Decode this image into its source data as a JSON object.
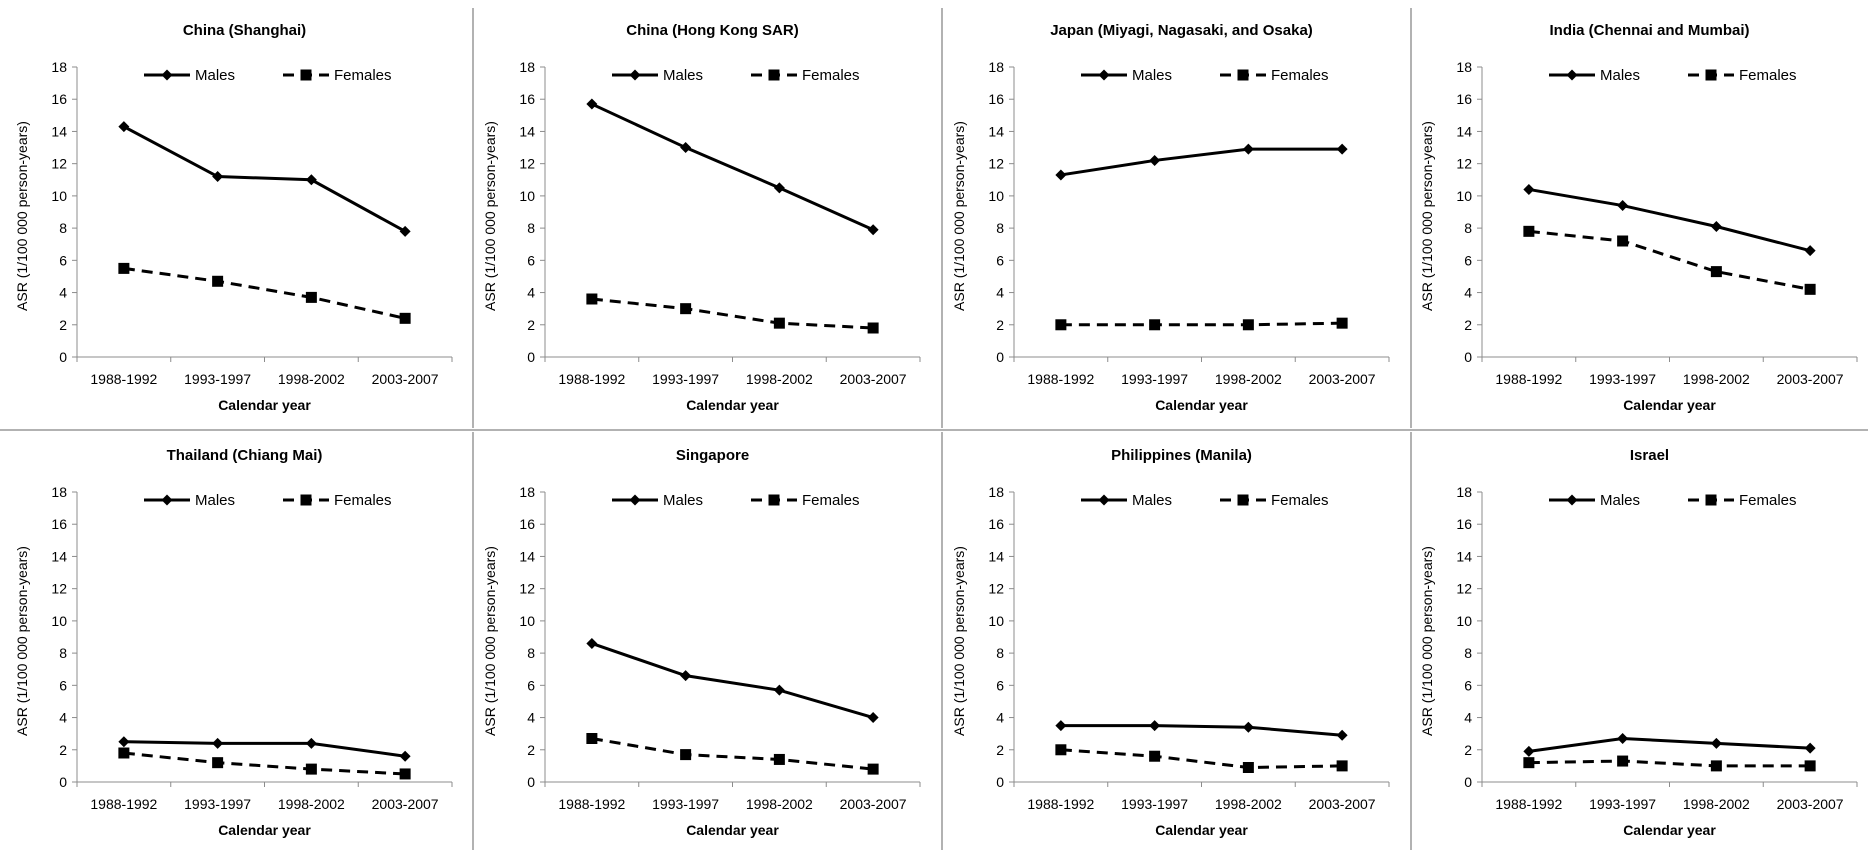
{
  "chart_data": [
    {
      "type": "line",
      "title": "China (Shanghai)",
      "categories": [
        "1988-1992",
        "1993-1997",
        "1998-2002",
        "2003-2007"
      ],
      "xlabel": "Calendar year",
      "ylabel": "ASR (1/100 000 person-years)",
      "ylim": [
        0,
        18
      ],
      "yticks": [
        0,
        2,
        4,
        6,
        8,
        10,
        12,
        14,
        16,
        18
      ],
      "legend_position": "top",
      "series": [
        {
          "name": "Males",
          "values": [
            14.3,
            11.2,
            11.0,
            7.8
          ]
        },
        {
          "name": "Females",
          "values": [
            5.5,
            4.7,
            3.7,
            2.4
          ]
        }
      ]
    },
    {
      "type": "line",
      "title": "China (Hong Kong SAR)",
      "categories": [
        "1988-1992",
        "1993-1997",
        "1998-2002",
        "2003-2007"
      ],
      "xlabel": "Calendar year",
      "ylabel": "ASR (1/100 000 person-years)",
      "ylim": [
        0,
        18
      ],
      "yticks": [
        0,
        2,
        4,
        6,
        8,
        10,
        12,
        14,
        16,
        18
      ],
      "legend_position": "top",
      "series": [
        {
          "name": "Males",
          "values": [
            15.7,
            13.0,
            10.5,
            7.9
          ]
        },
        {
          "name": "Females",
          "values": [
            3.6,
            3.0,
            2.1,
            1.8
          ]
        }
      ]
    },
    {
      "type": "line",
      "title": "Japan (Miyagi, Nagasaki, and Osaka)",
      "categories": [
        "1988-1992",
        "1993-1997",
        "1998-2002",
        "2003-2007"
      ],
      "xlabel": "Calendar year",
      "ylabel": "ASR (1/100 000 person-years)",
      "ylim": [
        0,
        18
      ],
      "yticks": [
        0,
        2,
        4,
        6,
        8,
        10,
        12,
        14,
        16,
        18
      ],
      "legend_position": "top",
      "series": [
        {
          "name": "Males",
          "values": [
            11.3,
            12.2,
            12.9,
            12.9
          ]
        },
        {
          "name": "Females",
          "values": [
            2.0,
            2.0,
            2.0,
            2.1
          ]
        }
      ]
    },
    {
      "type": "line",
      "title": "India (Chennai and Mumbai)",
      "categories": [
        "1988-1992",
        "1993-1997",
        "1998-2002",
        "2003-2007"
      ],
      "xlabel": "Calendar year",
      "ylabel": "ASR (1/100 000 person-years)",
      "ylim": [
        0,
        18
      ],
      "yticks": [
        0,
        2,
        4,
        6,
        8,
        10,
        12,
        14,
        16,
        18
      ],
      "legend_position": "top",
      "series": [
        {
          "name": "Males",
          "values": [
            10.4,
            9.4,
            8.1,
            6.6
          ]
        },
        {
          "name": "Females",
          "values": [
            7.8,
            7.2,
            5.3,
            4.2
          ]
        }
      ]
    },
    {
      "type": "line",
      "title": "Thailand (Chiang Mai)",
      "categories": [
        "1988-1992",
        "1993-1997",
        "1998-2002",
        "2003-2007"
      ],
      "xlabel": "Calendar year",
      "ylabel": "ASR (1/100 000 person-years)",
      "ylim": [
        0,
        18
      ],
      "yticks": [
        0,
        2,
        4,
        6,
        8,
        10,
        12,
        14,
        16,
        18
      ],
      "legend_position": "top",
      "series": [
        {
          "name": "Males",
          "values": [
            2.5,
            2.4,
            2.4,
            1.6
          ]
        },
        {
          "name": "Females",
          "values": [
            1.8,
            1.2,
            0.8,
            0.5
          ]
        }
      ]
    },
    {
      "type": "line",
      "title": "Singapore",
      "categories": [
        "1988-1992",
        "1993-1997",
        "1998-2002",
        "2003-2007"
      ],
      "xlabel": "Calendar year",
      "ylabel": "ASR (1/100 000 person-years)",
      "ylim": [
        0,
        18
      ],
      "yticks": [
        0,
        2,
        4,
        6,
        8,
        10,
        12,
        14,
        16,
        18
      ],
      "legend_position": "top",
      "series": [
        {
          "name": "Males",
          "values": [
            8.6,
            6.6,
            5.7,
            4.0
          ]
        },
        {
          "name": "Females",
          "values": [
            2.7,
            1.7,
            1.4,
            0.8
          ]
        }
      ]
    },
    {
      "type": "line",
      "title": "Philippines (Manila)",
      "categories": [
        "1988-1992",
        "1993-1997",
        "1998-2002",
        "2003-2007"
      ],
      "xlabel": "Calendar year",
      "ylabel": "ASR (1/100 000 person-years)",
      "ylim": [
        0,
        18
      ],
      "yticks": [
        0,
        2,
        4,
        6,
        8,
        10,
        12,
        14,
        16,
        18
      ],
      "legend_position": "top",
      "series": [
        {
          "name": "Males",
          "values": [
            3.5,
            3.5,
            3.4,
            2.9
          ]
        },
        {
          "name": "Females",
          "values": [
            2.0,
            1.6,
            0.9,
            1.0
          ]
        }
      ]
    },
    {
      "type": "line",
      "title": "Israel",
      "categories": [
        "1988-1992",
        "1993-1997",
        "1998-2002",
        "2003-2007"
      ],
      "xlabel": "Calendar year",
      "ylabel": "ASR (1/100 000 person-years)",
      "ylim": [
        0,
        18
      ],
      "yticks": [
        0,
        2,
        4,
        6,
        8,
        10,
        12,
        14,
        16,
        18
      ],
      "legend_position": "top",
      "series": [
        {
          "name": "Males",
          "values": [
            1.9,
            2.7,
            2.4,
            2.1
          ]
        },
        {
          "name": "Females",
          "values": [
            1.2,
            1.3,
            1.0,
            1.0
          ]
        }
      ]
    }
  ],
  "colors": {
    "line": "#000000",
    "axis": "#8c8c8c",
    "separator": "#999999",
    "text": "#000000"
  },
  "series_styles": {
    "Males": {
      "dash": "solid",
      "marker": "diamond-icon"
    },
    "Females": {
      "dash": "dashed",
      "marker": "square-icon"
    }
  }
}
